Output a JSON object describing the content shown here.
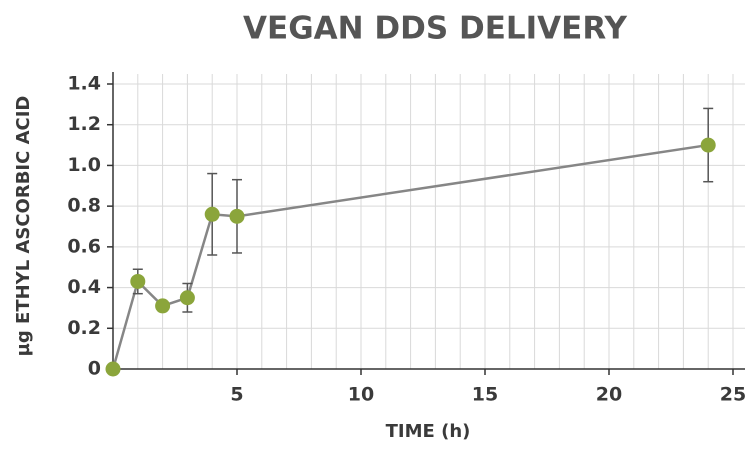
{
  "chart_data": {
    "type": "line",
    "title": "VEGAN DDS DELIVERY",
    "x_label": "TIME (h)",
    "y_label": "µg ETHYL ASCORBIC ACID",
    "x": [
      0,
      1,
      2,
      3,
      4,
      5,
      24
    ],
    "series": [
      {
        "name": "Ethyl ascorbic acid",
        "color": "#8ba53b",
        "line_color": "#868686",
        "values": [
          0,
          0.43,
          0.31,
          0.35,
          0.76,
          0.75,
          1.1
        ],
        "errors": [
          null,
          0.06,
          0.02,
          0.07,
          0.2,
          0.18,
          0.18
        ]
      }
    ],
    "xlim": [
      0,
      25
    ],
    "xticks": [
      5,
      10,
      15,
      20,
      25
    ],
    "xminorticks": [
      1,
      2,
      3,
      4,
      5,
      6,
      7,
      8,
      9,
      10,
      11,
      12,
      13,
      14,
      15,
      16,
      17,
      18,
      19,
      20,
      21,
      22,
      23,
      24,
      25
    ],
    "ylim": [
      0,
      1.4
    ],
    "yticks": [
      0,
      0.2,
      0.4,
      0.6,
      0.8,
      {
        "value": 1.0,
        "label": "1.0"
      },
      1.2,
      1.4
    ],
    "grid": true
  }
}
